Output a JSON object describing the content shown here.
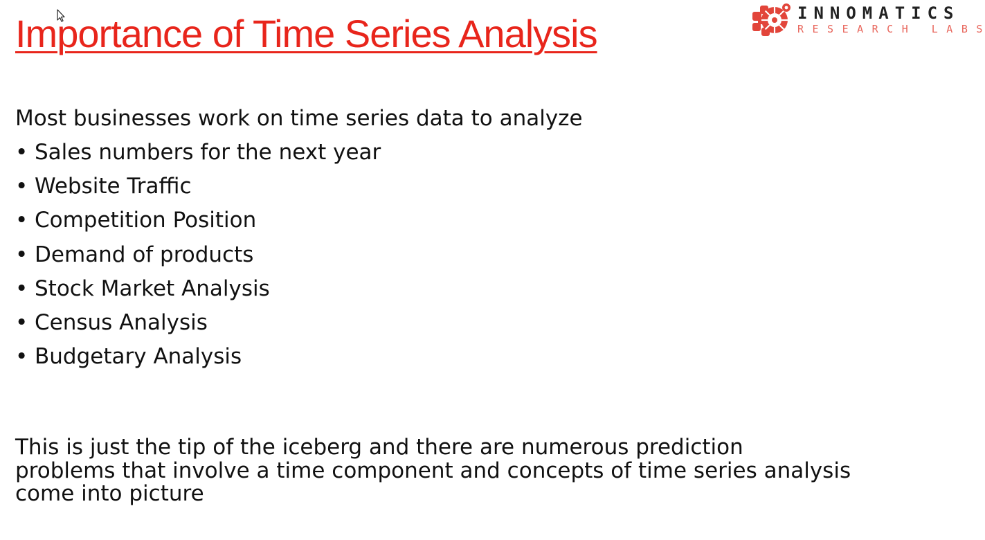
{
  "slide": {
    "title": "Importance of Time Series Analysis",
    "intro": "Most businesses work on time series data to analyze",
    "bullet_glyph": "•",
    "bullets": [
      "Sales numbers for the next year",
      "Website Traffic",
      "Competition Position",
      "Demand of products",
      "Stock Market Analysis",
      "Census Analysis",
      "Budgetary Analysis"
    ],
    "closing_lines": [
      "This is just the tip of the iceberg and there are numerous prediction",
      "problems that involve a time component and concepts of time series analysis",
      "come into picture"
    ]
  },
  "logo": {
    "name": "INNOMATICS",
    "subtitle": "RESEARCH LABS",
    "icon": "innomatics-logo-icon"
  },
  "cursor": {
    "icon": "mouse-pointer-icon"
  },
  "colors": {
    "title": "#e8251b",
    "text": "#111111",
    "logo_name": "#222222",
    "logo_subtitle": "#e8655b",
    "logo_mark": "#e2453a",
    "background": "#ffffff"
  }
}
